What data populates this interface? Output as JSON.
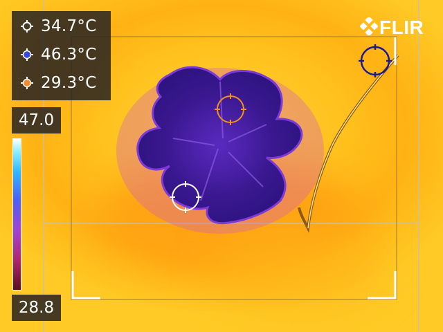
{
  "readouts": [
    {
      "value": "34.7°C",
      "marker_color": "#ffffff"
    },
    {
      "value": "46.3°C",
      "marker_color": "#3a46d8"
    },
    {
      "value": "29.3°C",
      "marker_color": "#f28a2e"
    }
  ],
  "scale": {
    "max": "47.0",
    "min": "28.8"
  },
  "logo": {
    "brand": "FLIR"
  },
  "spot_markers": [
    {
      "name": "white-spot",
      "color": "#ffffff"
    },
    {
      "name": "orange-spot",
      "color": "#f0901e"
    },
    {
      "name": "blue-spot",
      "color": "#20209a"
    }
  ],
  "colors": {
    "background_hot": "#ffc21e",
    "flower_cold": "#3a1a8a"
  }
}
